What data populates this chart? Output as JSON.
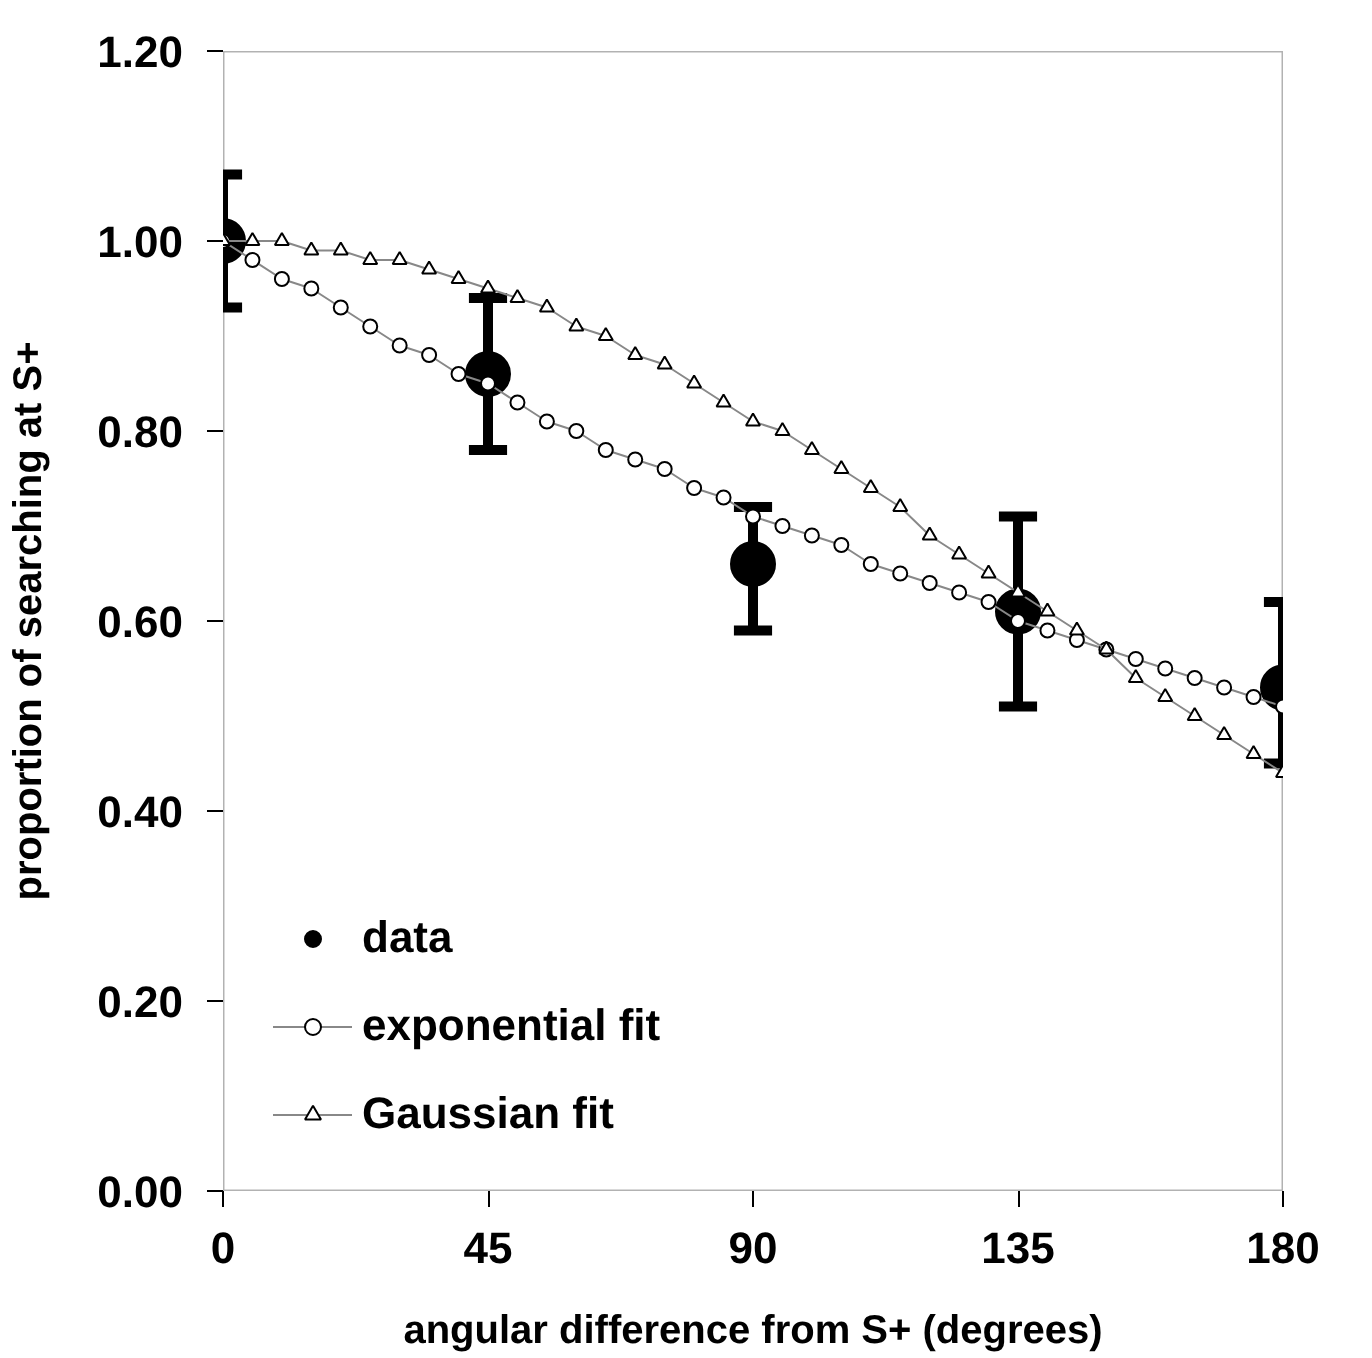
{
  "chart_data": {
    "type": "line",
    "xlabel": "angular difference from S+ (degrees)",
    "ylabel": "proportion of searching at S+",
    "xlim": [
      0,
      180
    ],
    "xticks": [
      0,
      45,
      90,
      135,
      180
    ],
    "ylim": [
      0,
      1.2
    ],
    "yticks": [
      {
        "value": 0,
        "label": "0.00"
      },
      {
        "value": 0.2,
        "label": "0.20"
      },
      {
        "value": 0.4,
        "label": "0.40"
      },
      {
        "value": 0.6,
        "label": "0.60"
      },
      {
        "value": 0.8,
        "label": "0.80"
      },
      {
        "value": 1.0,
        "label": "1.00"
      },
      {
        "value": 1.2,
        "label": "1.20"
      }
    ],
    "grid": false,
    "legend": "bottom left",
    "series": [
      {
        "name": "data",
        "type": "scatter",
        "marker": "circle",
        "color": "#000000",
        "x": [
          0,
          45,
          90,
          135,
          180
        ],
        "values": [
          1.0,
          0.86,
          0.66,
          0.61,
          0.53
        ],
        "errors": [
          [
            0.93,
            1.07
          ],
          [
            0.78,
            0.94
          ],
          [
            0.59,
            0.72
          ],
          [
            0.51,
            0.71
          ],
          [
            0.45,
            0.62
          ]
        ]
      },
      {
        "name": "exponential fit",
        "marker": "circle",
        "color": "#000000",
        "x": [
          0,
          5,
          10,
          15,
          20,
          25,
          30,
          35,
          40,
          45,
          50,
          55,
          60,
          65,
          70,
          75,
          80,
          85,
          90,
          95,
          100,
          105,
          110,
          115,
          120,
          125,
          130,
          135,
          140,
          145,
          150,
          155,
          160,
          165,
          170,
          175,
          180
        ],
        "values": [
          1.0,
          0.98,
          0.96,
          0.95,
          0.93,
          0.91,
          0.89,
          0.88,
          0.86,
          0.85,
          0.83,
          0.81,
          0.8,
          0.78,
          0.77,
          0.76,
          0.74,
          0.73,
          0.71,
          0.7,
          0.69,
          0.68,
          0.66,
          0.65,
          0.64,
          0.63,
          0.62,
          0.6,
          0.59,
          0.58,
          0.57,
          0.56,
          0.55,
          0.54,
          0.53,
          0.52,
          0.51
        ]
      },
      {
        "name": "Gaussian fit",
        "marker": "triangle",
        "color": "#000000",
        "x": [
          0,
          5,
          10,
          15,
          20,
          25,
          30,
          35,
          40,
          45,
          50,
          55,
          60,
          65,
          70,
          75,
          80,
          85,
          90,
          95,
          100,
          105,
          110,
          115,
          120,
          125,
          130,
          135,
          140,
          145,
          150,
          155,
          160,
          165,
          170,
          175,
          180
        ],
        "values": [
          1.0,
          1.0,
          1.0,
          0.99,
          0.99,
          0.98,
          0.98,
          0.97,
          0.96,
          0.95,
          0.94,
          0.93,
          0.91,
          0.9,
          0.88,
          0.87,
          0.85,
          0.83,
          0.81,
          0.8,
          0.78,
          0.76,
          0.74,
          0.72,
          0.69,
          0.67,
          0.65,
          0.63,
          0.61,
          0.59,
          0.57,
          0.54,
          0.52,
          0.5,
          0.48,
          0.46,
          0.44
        ]
      }
    ]
  }
}
